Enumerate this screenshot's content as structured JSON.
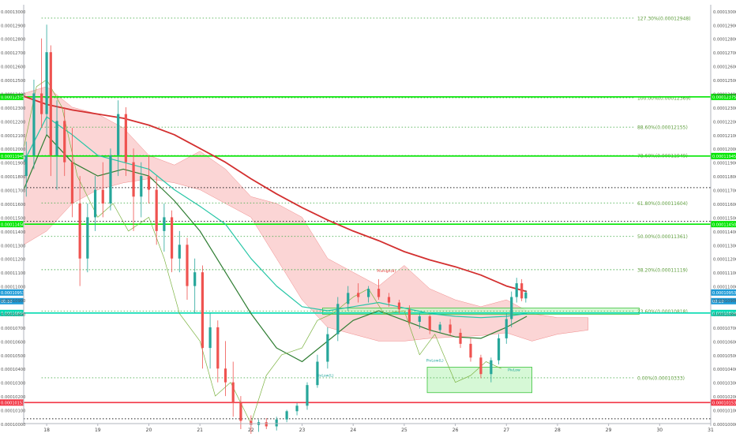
{
  "chart_data": {
    "type": "candlestick",
    "instrument_note": "",
    "y_ticks": [
      "0.00013000",
      "0.00012900",
      "0.00012800",
      "0.00012700",
      "0.00012600",
      "0.00012500",
      "0.00012400",
      "0.00012300",
      "0.00012200",
      "0.00012100",
      "0.00012000",
      "0.00011900",
      "0.00011800",
      "0.00011700",
      "0.00011600",
      "0.00011500",
      "0.00011400",
      "0.00011300",
      "0.00011200",
      "0.00011100",
      "0.00011000",
      "0.00010900",
      "0.00010800",
      "0.00010700",
      "0.00010600",
      "0.00010500",
      "0.00010400",
      "0.00010300",
      "0.00010200",
      "0.00010100",
      "0.00010000"
    ],
    "ylim": [
      0.0001,
      0.00013045
    ],
    "x_ticks": [
      "18",
      "19",
      "20",
      "21",
      "22",
      "23",
      "24",
      "25",
      "26",
      "27",
      "28",
      "29",
      "30",
      "31"
    ],
    "xlim": [
      17.55,
      31.0
    ],
    "fib_levels": [
      {
        "label": "127.30%(0.00012948)",
        "value": 0.00012948
      },
      {
        "label": "100.00%(0.00012369)",
        "value": 0.00012369
      },
      {
        "label": "88.60%(0.00012155)",
        "value": 0.00012155
      },
      {
        "label": "78.60%(0.00011949)",
        "value": 0.00011949
      },
      {
        "label": "61.80%(0.00011604)",
        "value": 0.00011604
      },
      {
        "label": "50.00%(0.00011361)",
        "value": 0.00011361
      },
      {
        "label": "38.20%(0.00011119)",
        "value": 0.00011119
      },
      {
        "label": "23.60%(0.00010818)",
        "value": 0.00010818
      },
      {
        "label": "0.00%(0.00010333)",
        "value": 0.00010333
      }
    ],
    "fib_x_range": [
      17.9,
      29.5
    ],
    "horizontal_lines": [
      {
        "value": 0.00012375,
        "color": "#00e600",
        "label": "0.00012375"
      },
      {
        "value": 0.00011945,
        "color": "#00e600",
        "label": "0.00011945"
      },
      {
        "value": 0.0001145,
        "color": "#00e600",
        "label": "0.00011450"
      },
      {
        "value": 0.00010804,
        "color": "#00d9b0",
        "label": "0.00010804"
      },
      {
        "value": 0.00010153,
        "color": "#f23645",
        "label": "0.00010153"
      }
    ],
    "dotted_black_lines": [
      0.00011715,
      0.0001147,
      0.00010035
    ],
    "price_tags": [
      {
        "value": 0.00010953,
        "text": "0.00010953",
        "bg": "#1e9bd7"
      },
      {
        "value": 0.0001089,
        "text": "00:10",
        "bg": "#1e9bd7"
      }
    ],
    "zones": [
      {
        "x0": 23.4,
        "x1": 29.6,
        "y0": 0.00010795,
        "y1": 0.0001084,
        "fill": "#c8f5c8",
        "stroke": "#3cc43c"
      },
      {
        "x0": 25.45,
        "x1": 27.5,
        "y0": 0.00010225,
        "y1": 0.0001041,
        "fill": "#c8f5c8",
        "stroke": "#3cc43c"
      }
    ],
    "annotations": [
      {
        "x": 24.65,
        "y": 0.000111,
        "text": "PivHigh(8)",
        "color": "#e53935"
      },
      {
        "x": 25.6,
        "y": 0.0001045,
        "text": "PivLow(L)",
        "color": "#1aa39a"
      },
      {
        "x": 23.45,
        "y": 0.0001034,
        "text": "PivLow(L)",
        "color": "#1aa39a"
      },
      {
        "x": 27.15,
        "y": 0.0001038,
        "text": "PivLow",
        "color": "#1aa39a"
      }
    ],
    "series": [
      {
        "name": "",
        "color": "#d32f2f",
        "kind": "ma_slow",
        "x": [
          17.55,
          18.0,
          18.5,
          19.0,
          19.5,
          20.0,
          20.5,
          21.0,
          21.5,
          22.0,
          22.5,
          23.0,
          23.5,
          24.0,
          24.5,
          25.0,
          25.5,
          26.0,
          26.5,
          27.0,
          27.4
        ],
        "y": [
          0.0001238,
          0.0001232,
          0.0001228,
          0.0001225,
          0.0001222,
          0.0001217,
          0.000121,
          0.00012,
          0.000119,
          0.0001178,
          0.0001167,
          0.0001157,
          0.0001148,
          0.000114,
          0.0001133,
          0.0001125,
          0.0001119,
          0.0001114,
          0.0001108,
          0.00011,
          0.0001096
        ]
      },
      {
        "name": "",
        "color": "#26c6a6",
        "kind": "ma_fast",
        "x": [
          17.55,
          18.0,
          18.5,
          19.0,
          19.5,
          20.0,
          20.5,
          21.0,
          21.5,
          22.0,
          22.5,
          23.0,
          23.5,
          24.0,
          24.5,
          25.0,
          25.5,
          26.0,
          26.5,
          27.0,
          27.4
        ],
        "y": [
          0.000119,
          0.0001223,
          0.000121,
          0.0001195,
          0.000119,
          0.0001185,
          0.000117,
          0.0001158,
          0.0001145,
          0.000112,
          0.00011,
          0.0001085,
          0.0001082,
          0.0001085,
          0.0001088,
          0.0001084,
          0.000108,
          0.0001078,
          0.0001077,
          0.0001078,
          0.000108
        ]
      },
      {
        "name": "",
        "color": "#2e7d32",
        "kind": "ma_mid",
        "x": [
          17.55,
          18.0,
          18.5,
          19.0,
          19.5,
          20.0,
          20.5,
          21.0,
          21.5,
          22.0,
          22.5,
          23.0,
          23.5,
          24.0,
          24.5,
          25.0,
          25.5,
          26.0,
          26.5,
          27.0,
          27.4
        ],
        "y": [
          0.000117,
          0.000121,
          0.000119,
          0.000118,
          0.0001185,
          0.000118,
          0.0001162,
          0.000114,
          0.000111,
          0.000108,
          0.0001055,
          0.0001045,
          0.000106,
          0.0001075,
          0.0001082,
          0.0001075,
          0.0001068,
          0.0001063,
          0.0001062,
          0.000107,
          0.0001078
        ]
      },
      {
        "name": "",
        "color": "#7cb342",
        "kind": "lagging",
        "x": [
          17.55,
          17.8,
          18.0,
          18.3,
          18.6,
          19.0,
          19.3,
          19.6,
          20.0,
          20.3,
          20.6,
          21.0,
          21.3,
          21.6,
          22.0,
          22.3,
          22.6,
          23.0,
          23.3,
          23.6,
          24.0,
          24.3,
          24.6,
          25.0,
          25.3,
          25.6,
          26.0,
          26.3,
          26.6,
          26.9
        ],
        "y": [
          0.00012,
          0.0001245,
          0.000125,
          0.000123,
          0.000118,
          0.000115,
          0.000116,
          0.000114,
          0.000115,
          0.000112,
          0.000108,
          0.000106,
          0.000102,
          0.000103,
          0.0001,
          0.0001035,
          0.000105,
          0.0001055,
          0.0001075,
          0.000108,
          0.0001092,
          0.0001098,
          0.000108,
          0.0001082,
          0.000105,
          0.0001065,
          0.000103,
          0.0001035,
          0.0001045,
          0.000104
        ]
      }
    ],
    "cloud_upper": {
      "x": [
        17.55,
        18.0,
        18.5,
        19.0,
        19.5,
        20.0,
        20.5,
        21.0,
        21.5,
        22.0,
        22.5,
        23.0,
        23.5,
        24.0,
        24.5,
        25.0,
        25.5,
        26.0,
        26.5,
        27.0,
        27.5,
        28.0,
        28.6
      ],
      "y": [
        0.000124,
        0.0001245,
        0.000123,
        0.0001225,
        0.0001215,
        0.0001195,
        0.0001188,
        0.0001198,
        0.0001185,
        0.0001165,
        0.000116,
        0.000115,
        0.000112,
        0.000111,
        0.00011,
        0.0001115,
        0.0001098,
        0.000109,
        0.0001085,
        0.000109,
        0.000108,
        0.0001077,
        0.0001077
      ]
    },
    "cloud_lower": {
      "x": [
        17.55,
        18.0,
        18.5,
        19.0,
        19.5,
        20.0,
        20.5,
        21.0,
        21.5,
        22.0,
        22.5,
        23.0,
        23.5,
        24.0,
        24.5,
        25.0,
        25.5,
        26.0,
        26.5,
        27.0,
        27.5,
        28.0,
        28.6
      ],
      "y": [
        0.000113,
        0.000114,
        0.000116,
        0.000117,
        0.0001175,
        0.0001178,
        0.0001175,
        0.000117,
        0.000116,
        0.000115,
        0.000112,
        0.000109,
        0.000107,
        0.0001065,
        0.000106,
        0.000106,
        0.0001062,
        0.0001063,
        0.0001064,
        0.0001066,
        0.000106,
        0.0001065,
        0.0001068
      ]
    },
    "candles": [
      {
        "x": 17.6,
        "o": 0.000118,
        "h": 0.0001205,
        "l": 0.0001165,
        "c": 0.0001195
      },
      {
        "x": 17.75,
        "o": 0.0001195,
        "h": 0.000125,
        "l": 0.0001185,
        "c": 0.000124
      },
      {
        "x": 17.9,
        "o": 0.000124,
        "h": 0.000128,
        "l": 0.0001215,
        "c": 0.0001225
      },
      {
        "x": 18.0,
        "o": 0.0001225,
        "h": 0.000129,
        "l": 0.000121,
        "c": 0.000127
      },
      {
        "x": 18.08,
        "o": 0.000127,
        "h": 0.0001275,
        "l": 0.000118,
        "c": 0.0001195
      },
      {
        "x": 18.2,
        "o": 0.0001195,
        "h": 0.0001235,
        "l": 0.000117,
        "c": 0.000122
      },
      {
        "x": 18.35,
        "o": 0.000122,
        "h": 0.000123,
        "l": 0.000118,
        "c": 0.000119
      },
      {
        "x": 18.5,
        "o": 0.000119,
        "h": 0.0001215,
        "l": 0.000115,
        "c": 0.000116
      },
      {
        "x": 18.65,
        "o": 0.000116,
        "h": 0.000118,
        "l": 0.00011,
        "c": 0.000112
      },
      {
        "x": 18.8,
        "o": 0.000112,
        "h": 0.000116,
        "l": 0.000111,
        "c": 0.000115
      },
      {
        "x": 18.95,
        "o": 0.000115,
        "h": 0.000118,
        "l": 0.000114,
        "c": 0.000117
      },
      {
        "x": 19.1,
        "o": 0.000117,
        "h": 0.000119,
        "l": 0.000115,
        "c": 0.000116
      },
      {
        "x": 19.25,
        "o": 0.000116,
        "h": 0.00012,
        "l": 0.0001155,
        "c": 0.0001195
      },
      {
        "x": 19.4,
        "o": 0.0001195,
        "h": 0.0001235,
        "l": 0.000118,
        "c": 0.0001225
      },
      {
        "x": 19.55,
        "o": 0.0001225,
        "h": 0.000123,
        "l": 0.000118,
        "c": 0.000119
      },
      {
        "x": 19.7,
        "o": 0.000119,
        "h": 0.00012,
        "l": 0.000114,
        "c": 0.0001165
      },
      {
        "x": 19.85,
        "o": 0.0001165,
        "h": 0.000119,
        "l": 0.000115,
        "c": 0.000118
      },
      {
        "x": 20.0,
        "o": 0.000118,
        "h": 0.0001195,
        "l": 0.000116,
        "c": 0.000117
      },
      {
        "x": 20.15,
        "o": 0.000117,
        "h": 0.000118,
        "l": 0.000113,
        "c": 0.000114
      },
      {
        "x": 20.3,
        "o": 0.000114,
        "h": 0.000116,
        "l": 0.0001125,
        "c": 0.000115
      },
      {
        "x": 20.45,
        "o": 0.000115,
        "h": 0.0001155,
        "l": 0.000111,
        "c": 0.000112
      },
      {
        "x": 20.6,
        "o": 0.000112,
        "h": 0.000114,
        "l": 0.000111,
        "c": 0.000113
      },
      {
        "x": 20.75,
        "o": 0.000113,
        "h": 0.0001135,
        "l": 0.000109,
        "c": 0.00011
      },
      {
        "x": 20.9,
        "o": 0.00011,
        "h": 0.000112,
        "l": 0.000108,
        "c": 0.000111
      },
      {
        "x": 21.05,
        "o": 0.000111,
        "h": 0.0001115,
        "l": 0.000104,
        "c": 0.0001055
      },
      {
        "x": 21.2,
        "o": 0.0001055,
        "h": 0.000108,
        "l": 0.000104,
        "c": 0.000107
      },
      {
        "x": 21.35,
        "o": 0.000107,
        "h": 0.0001075,
        "l": 0.000103,
        "c": 0.000104
      },
      {
        "x": 21.5,
        "o": 0.000104,
        "h": 0.000106,
        "l": 0.000102,
        "c": 0.000103
      },
      {
        "x": 21.65,
        "o": 0.000103,
        "h": 0.0001045,
        "l": 0.0001005,
        "c": 0.0001015
      },
      {
        "x": 21.8,
        "o": 0.0001015,
        "h": 0.000102,
        "l": 9.96e-05,
        "c": 0.0001002
      },
      {
        "x": 22.0,
        "o": 0.0001002,
        "h": 0.0001006,
        "l": 9.92e-05,
        "c": 9.99e-05
      },
      {
        "x": 22.15,
        "o": 9.99e-05,
        "h": 0.0001003,
        "l": 9.94e-05,
        "c": 0.0001001
      },
      {
        "x": 22.3,
        "o": 0.0001001,
        "h": 0.0001004,
        "l": 9.96e-05,
        "c": 9.98e-05
      },
      {
        "x": 22.5,
        "o": 9.98e-05,
        "h": 0.0001005,
        "l": 9.95e-05,
        "c": 0.0001003
      },
      {
        "x": 22.7,
        "o": 0.0001003,
        "h": 0.000101,
        "l": 0.0001001,
        "c": 0.0001009
      },
      {
        "x": 22.9,
        "o": 0.0001009,
        "h": 0.0001015,
        "l": 0.0001006,
        "c": 0.0001013
      },
      {
        "x": 23.1,
        "o": 0.0001013,
        "h": 0.000103,
        "l": 0.000101,
        "c": 0.0001028
      },
      {
        "x": 23.3,
        "o": 0.0001028,
        "h": 0.000105,
        "l": 0.0001026,
        "c": 0.0001045
      },
      {
        "x": 23.5,
        "o": 0.0001045,
        "h": 0.000107,
        "l": 0.000104,
        "c": 0.0001065
      },
      {
        "x": 23.7,
        "o": 0.0001065,
        "h": 0.0001092,
        "l": 0.000106,
        "c": 0.0001087
      },
      {
        "x": 23.9,
        "o": 0.0001087,
        "h": 0.00011,
        "l": 0.0001082,
        "c": 0.0001095
      },
      {
        "x": 24.1,
        "o": 0.0001095,
        "h": 0.0001102,
        "l": 0.0001088,
        "c": 0.0001092
      },
      {
        "x": 24.3,
        "o": 0.0001092,
        "h": 0.00011,
        "l": 0.0001088,
        "c": 0.0001098
      },
      {
        "x": 24.5,
        "o": 0.0001098,
        "h": 0.0001105,
        "l": 0.000109,
        "c": 0.0001092
      },
      {
        "x": 24.7,
        "o": 0.0001092,
        "h": 0.0001095,
        "l": 0.0001085,
        "c": 0.0001088
      },
      {
        "x": 24.9,
        "o": 0.0001088,
        "h": 0.000109,
        "l": 0.000108,
        "c": 0.0001083
      },
      {
        "x": 25.1,
        "o": 0.0001083,
        "h": 0.0001086,
        "l": 0.0001072,
        "c": 0.0001074
      },
      {
        "x": 25.3,
        "o": 0.0001074,
        "h": 0.000108,
        "l": 0.0001069,
        "c": 0.0001078
      },
      {
        "x": 25.5,
        "o": 0.0001078,
        "h": 0.0001079,
        "l": 0.0001065,
        "c": 0.0001068
      },
      {
        "x": 25.7,
        "o": 0.0001068,
        "h": 0.0001074,
        "l": 0.0001066,
        "c": 0.0001072
      },
      {
        "x": 25.9,
        "o": 0.0001072,
        "h": 0.0001076,
        "l": 0.0001064,
        "c": 0.0001066
      },
      {
        "x": 26.1,
        "o": 0.0001066,
        "h": 0.0001069,
        "l": 0.0001055,
        "c": 0.0001058
      },
      {
        "x": 26.3,
        "o": 0.0001058,
        "h": 0.0001062,
        "l": 0.0001045,
        "c": 0.0001048
      },
      {
        "x": 26.5,
        "o": 0.0001048,
        "h": 0.000105,
        "l": 0.0001033,
        "c": 0.0001036
      },
      {
        "x": 26.7,
        "o": 0.0001036,
        "h": 0.0001048,
        "l": 0.000103,
        "c": 0.0001046
      },
      {
        "x": 26.85,
        "o": 0.0001046,
        "h": 0.0001065,
        "l": 0.0001043,
        "c": 0.0001062
      },
      {
        "x": 27.0,
        "o": 0.0001062,
        "h": 0.000108,
        "l": 0.0001058,
        "c": 0.0001076
      },
      {
        "x": 27.1,
        "o": 0.0001076,
        "h": 0.0001096,
        "l": 0.000107,
        "c": 0.0001092
      },
      {
        "x": 27.2,
        "o": 0.0001092,
        "h": 0.0001106,
        "l": 0.0001088,
        "c": 0.0001102
      },
      {
        "x": 27.3,
        "o": 0.0001102,
        "h": 0.0001105,
        "l": 0.0001089,
        "c": 0.0001091
      },
      {
        "x": 27.38,
        "o": 0.0001091,
        "h": 0.0001097,
        "l": 0.0001088,
        "c": 0.00010953
      }
    ]
  }
}
